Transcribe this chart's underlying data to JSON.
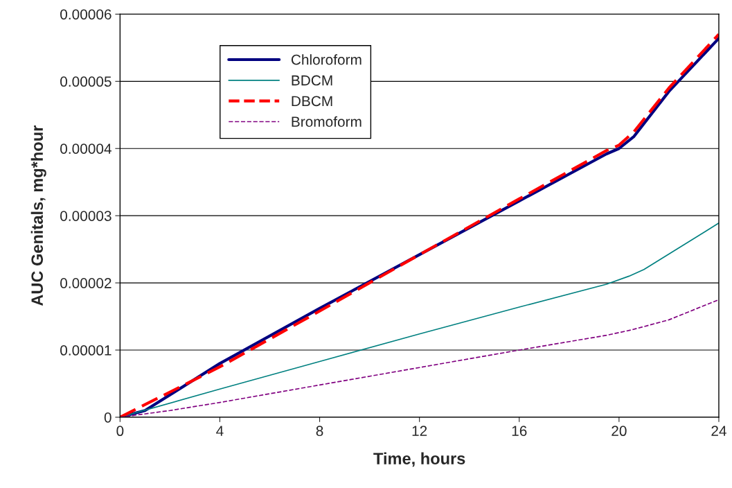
{
  "chart_data": {
    "type": "line",
    "xlabel": "Time, hours",
    "ylabel": "AUC Genitals, mg*hour",
    "xlim": [
      0,
      24
    ],
    "xticks": [
      0,
      4,
      8,
      12,
      16,
      20,
      24
    ],
    "ylim": [
      0,
      6e-05
    ],
    "yticks": [
      0,
      {
        "value": 1e-05,
        "label": "0.00001"
      },
      {
        "value": 2e-05,
        "label": "0.00002"
      },
      {
        "value": 3e-05,
        "label": "0.00003"
      },
      {
        "value": 4e-05,
        "label": "0.00004"
      },
      {
        "value": 5e-05,
        "label": "0.00005"
      },
      {
        "value": 6e-05,
        "label": "0.00006"
      }
    ],
    "grid": "y",
    "legend": "top left",
    "marker": "none",
    "series": [
      {
        "name": "Chloroform",
        "color": "#000080",
        "line_style": "solid",
        "x": [
          0,
          1,
          4,
          8,
          12,
          16,
          19.5,
          20,
          20.6,
          22,
          24
        ],
        "values": [
          0,
          1e-06,
          8e-06,
          1.62e-05,
          2.42e-05,
          3.22e-05,
          3.92e-05,
          4e-05,
          4.18e-05,
          4.85e-05,
          5.64e-05
        ]
      },
      {
        "name": "BDCM",
        "color": "#008080",
        "line_style": "solid",
        "x": [
          0,
          4,
          8,
          12,
          16,
          19.5,
          20.4,
          21,
          24
        ],
        "values": [
          0,
          4.2e-06,
          8.3e-06,
          1.24e-05,
          1.64e-05,
          1.98e-05,
          2.1e-05,
          2.2e-05,
          2.89e-05
        ]
      },
      {
        "name": "DBCM",
        "color": "#ff0000",
        "line_style": "dashed",
        "x": [
          0,
          4,
          8,
          12,
          16,
          19.5,
          20,
          20.6,
          22,
          24
        ],
        "values": [
          0,
          7.5e-06,
          1.58e-05,
          2.42e-05,
          3.25e-05,
          3.97e-05,
          4.05e-05,
          4.25e-05,
          4.9e-05,
          5.7e-05
        ]
      },
      {
        "name": "Bromoform",
        "color": "#800080",
        "line_style": "dashed",
        "x": [
          0,
          2,
          4,
          8,
          12,
          16,
          19.5,
          20.5,
          22,
          24
        ],
        "values": [
          0,
          1e-06,
          2.2e-06,
          4.8e-06,
          7.4e-06,
          1e-05,
          1.22e-05,
          1.3e-05,
          1.45e-05,
          1.75e-05
        ]
      }
    ]
  }
}
